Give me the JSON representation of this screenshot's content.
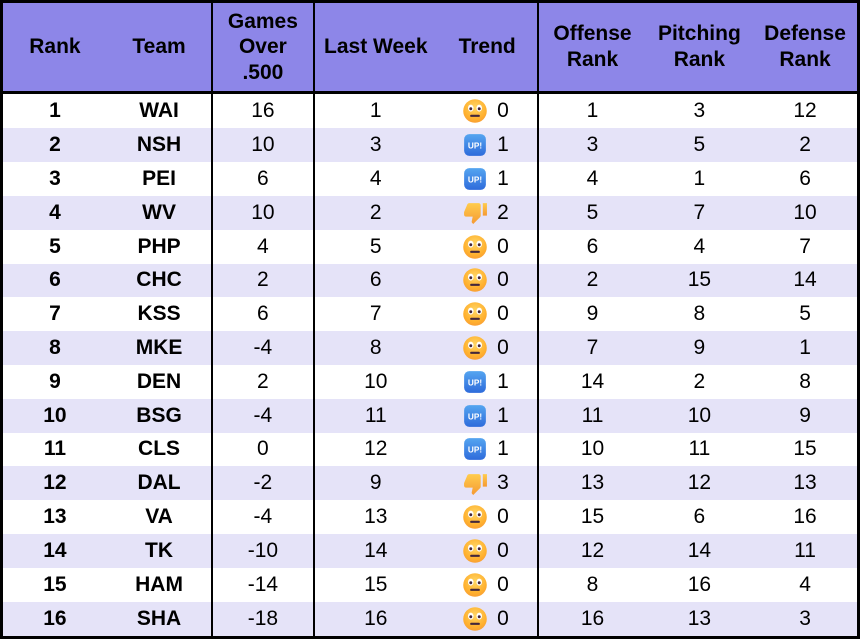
{
  "colors": {
    "header_bg": "#8D86E8",
    "stripe_bg": "#E5E3F8",
    "border": "#000000",
    "text": "#000000",
    "up_button_blue_top": "#55A5F0",
    "up_button_blue_bottom": "#2E6BDB",
    "emoji_face_orange": "#FFB02E",
    "thumb_yellow": "#FFC83D"
  },
  "icons": {
    "up_button_label": "UP!",
    "trend_icon_names": [
      "neutral-face-icon",
      "up-button-icon",
      "thumbs-down-icon"
    ]
  },
  "chart_data": {
    "type": "table",
    "columns": [
      "Rank",
      "Team",
      "Games Over .500",
      "Last Week",
      "Trend",
      "Offense Rank",
      "Pitching Rank",
      "Defense Rank"
    ],
    "rows": [
      {
        "rank": "1",
        "team": "WAI",
        "games_over_500": "16",
        "last_week": "1",
        "trend": {
          "icon": "neutral-face-icon",
          "value": "0"
        },
        "offense_rank": "1",
        "pitching_rank": "3",
        "defense_rank": "12"
      },
      {
        "rank": "2",
        "team": "NSH",
        "games_over_500": "10",
        "last_week": "3",
        "trend": {
          "icon": "up-button-icon",
          "value": "1"
        },
        "offense_rank": "3",
        "pitching_rank": "5",
        "defense_rank": "2"
      },
      {
        "rank": "3",
        "team": "PEI",
        "games_over_500": "6",
        "last_week": "4",
        "trend": {
          "icon": "up-button-icon",
          "value": "1"
        },
        "offense_rank": "4",
        "pitching_rank": "1",
        "defense_rank": "6"
      },
      {
        "rank": "4",
        "team": "WV",
        "games_over_500": "10",
        "last_week": "2",
        "trend": {
          "icon": "thumbs-down-icon",
          "value": "2"
        },
        "offense_rank": "5",
        "pitching_rank": "7",
        "defense_rank": "10"
      },
      {
        "rank": "5",
        "team": "PHP",
        "games_over_500": "4",
        "last_week": "5",
        "trend": {
          "icon": "neutral-face-icon",
          "value": "0"
        },
        "offense_rank": "6",
        "pitching_rank": "4",
        "defense_rank": "7"
      },
      {
        "rank": "6",
        "team": "CHC",
        "games_over_500": "2",
        "last_week": "6",
        "trend": {
          "icon": "neutral-face-icon",
          "value": "0"
        },
        "offense_rank": "2",
        "pitching_rank": "15",
        "defense_rank": "14"
      },
      {
        "rank": "7",
        "team": "KSS",
        "games_over_500": "6",
        "last_week": "7",
        "trend": {
          "icon": "neutral-face-icon",
          "value": "0"
        },
        "offense_rank": "9",
        "pitching_rank": "8",
        "defense_rank": "5"
      },
      {
        "rank": "8",
        "team": "MKE",
        "games_over_500": "-4",
        "last_week": "8",
        "trend": {
          "icon": "neutral-face-icon",
          "value": "0"
        },
        "offense_rank": "7",
        "pitching_rank": "9",
        "defense_rank": "1"
      },
      {
        "rank": "9",
        "team": "DEN",
        "games_over_500": "2",
        "last_week": "10",
        "trend": {
          "icon": "up-button-icon",
          "value": "1"
        },
        "offense_rank": "14",
        "pitching_rank": "2",
        "defense_rank": "8"
      },
      {
        "rank": "10",
        "team": "BSG",
        "games_over_500": "-4",
        "last_week": "11",
        "trend": {
          "icon": "up-button-icon",
          "value": "1"
        },
        "offense_rank": "11",
        "pitching_rank": "10",
        "defense_rank": "9"
      },
      {
        "rank": "11",
        "team": "CLS",
        "games_over_500": "0",
        "last_week": "12",
        "trend": {
          "icon": "up-button-icon",
          "value": "1"
        },
        "offense_rank": "10",
        "pitching_rank": "11",
        "defense_rank": "15"
      },
      {
        "rank": "12",
        "team": "DAL",
        "games_over_500": "-2",
        "last_week": "9",
        "trend": {
          "icon": "thumbs-down-icon",
          "value": "3"
        },
        "offense_rank": "13",
        "pitching_rank": "12",
        "defense_rank": "13"
      },
      {
        "rank": "13",
        "team": "VA",
        "games_over_500": "-4",
        "last_week": "13",
        "trend": {
          "icon": "neutral-face-icon",
          "value": "0"
        },
        "offense_rank": "15",
        "pitching_rank": "6",
        "defense_rank": "16"
      },
      {
        "rank": "14",
        "team": "TK",
        "games_over_500": "-10",
        "last_week": "14",
        "trend": {
          "icon": "neutral-face-icon",
          "value": "0"
        },
        "offense_rank": "12",
        "pitching_rank": "14",
        "defense_rank": "11"
      },
      {
        "rank": "15",
        "team": "HAM",
        "games_over_500": "-14",
        "last_week": "15",
        "trend": {
          "icon": "neutral-face-icon",
          "value": "0"
        },
        "offense_rank": "8",
        "pitching_rank": "16",
        "defense_rank": "4"
      },
      {
        "rank": "16",
        "team": "SHA",
        "games_over_500": "-18",
        "last_week": "16",
        "trend": {
          "icon": "neutral-face-icon",
          "value": "0"
        },
        "offense_rank": "16",
        "pitching_rank": "13",
        "defense_rank": "3"
      }
    ]
  }
}
